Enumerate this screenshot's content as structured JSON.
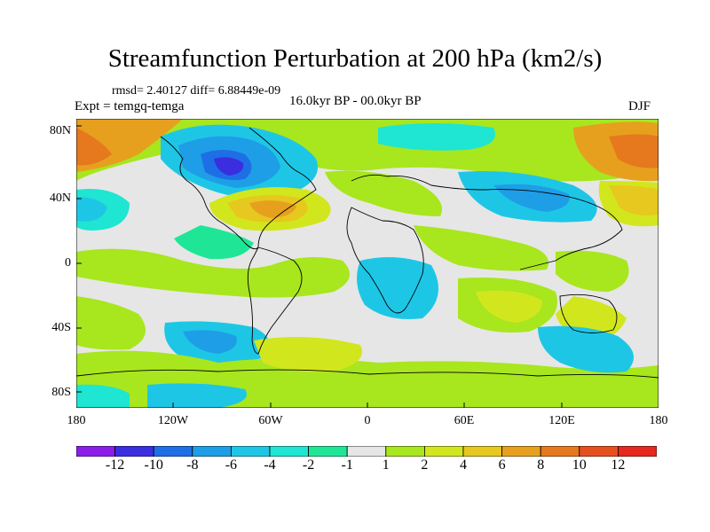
{
  "title": "Streamfunction Perturbation at 200 hPa (km2/s)",
  "stats": "rmsd= 2.40127 diff= 6.88449e-09",
  "experiment": "Expt = temgq-temga",
  "period": "16.0kyr BP - 00.0kyr BP",
  "season": "DJF",
  "y_axis_labels": [
    "80N",
    "40N",
    "0",
    "40S",
    "80S"
  ],
  "x_axis_labels": [
    "180",
    "120W",
    "60W",
    "0",
    "60E",
    "120E",
    "180"
  ],
  "colorbar": {
    "labels": [
      "-12",
      "-10",
      "-8",
      "-6",
      "-4",
      "-2",
      "-1",
      "1",
      "2",
      "4",
      "6",
      "8",
      "10",
      "12"
    ],
    "colors": [
      "#8a1ee8",
      "#3a2ee0",
      "#1e6ee6",
      "#1e9ee6",
      "#1ec6e6",
      "#1ee6d2",
      "#1ee696",
      "#e6e6e6",
      "#a8e61e",
      "#d2e61e",
      "#e6c81e",
      "#e6a01e",
      "#e6781e",
      "#e6501e",
      "#e6281e"
    ]
  }
}
